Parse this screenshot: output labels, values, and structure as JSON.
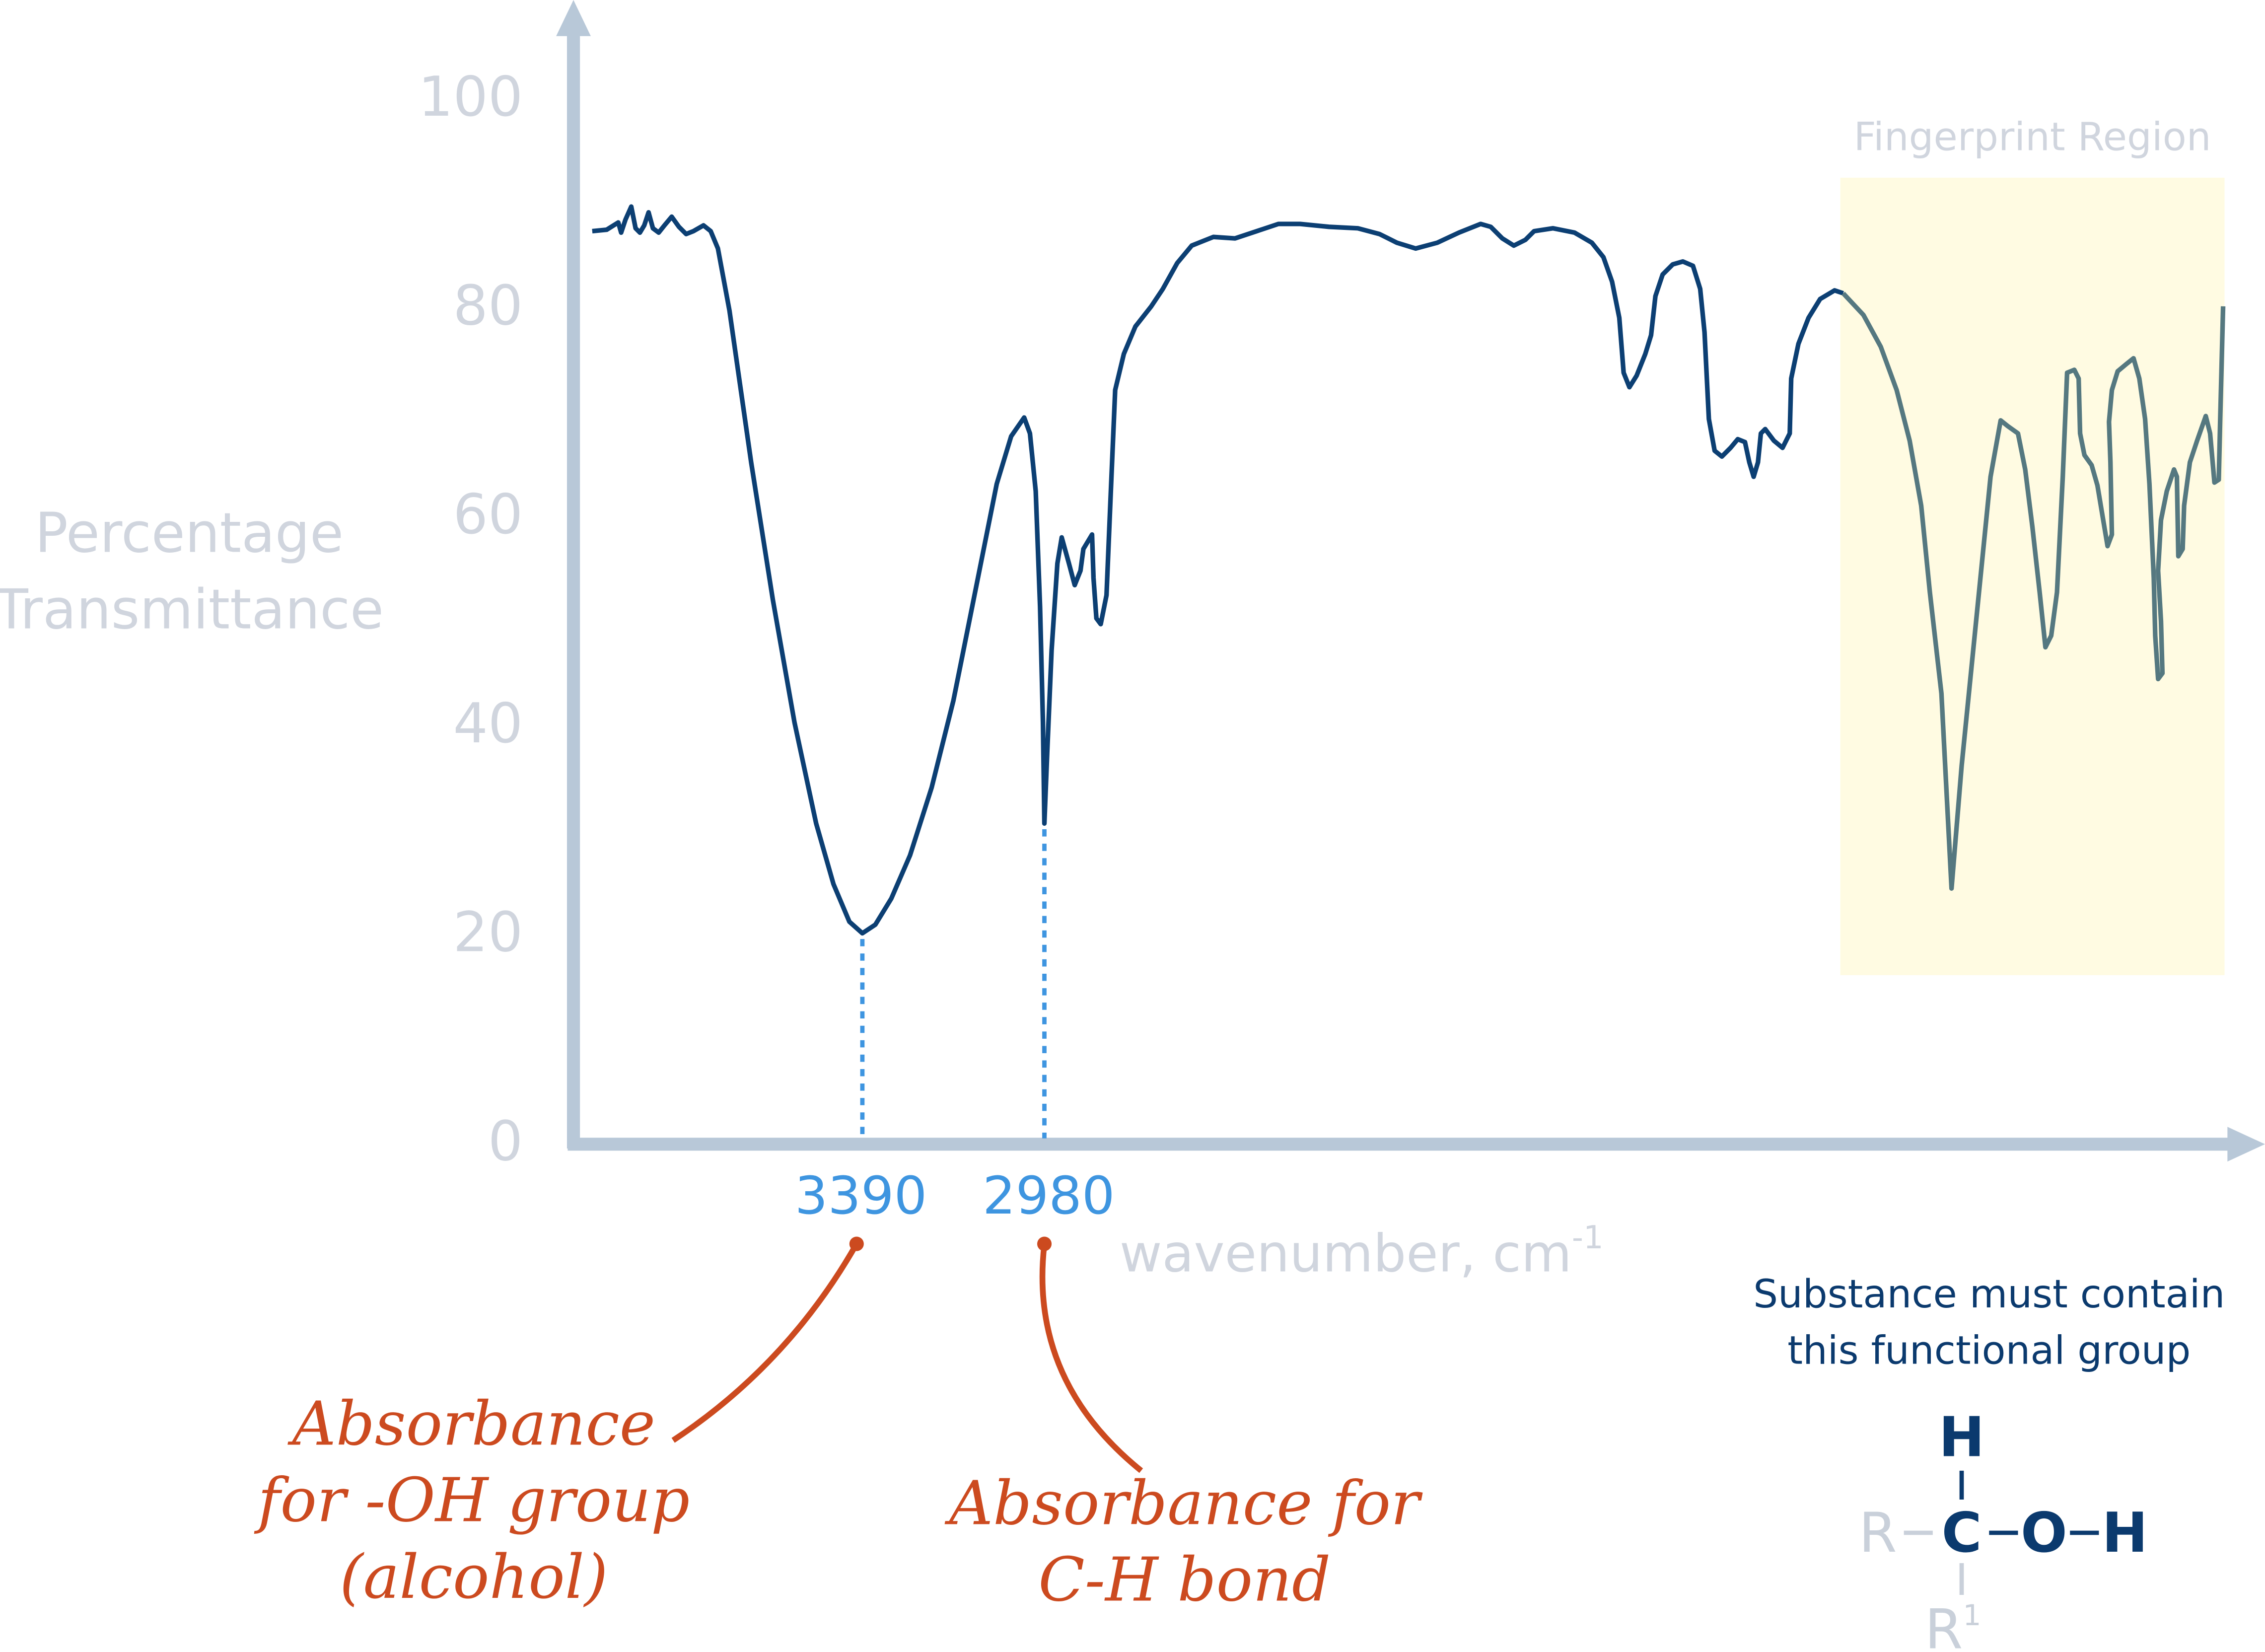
{
  "chart_data": {
    "type": "line",
    "ylabel_lines": [
      "Percentage",
      "Transmittance"
    ],
    "xlabel": "wavenumber, cm",
    "xlabel_sup": "-1",
    "ylim": [
      0,
      100
    ],
    "yticks": [
      "0",
      "20",
      "40",
      "60",
      "80",
      "100"
    ],
    "x_direction": "decreasing wavenumber left to right",
    "marked_peaks": [
      {
        "wavenumber": "3390",
        "transmittance": 20
      },
      {
        "wavenumber": "2980",
        "transmittance": 31
      }
    ],
    "region": {
      "label": "Fingerprint Region",
      "color": "#fffbe2"
    },
    "colors": {
      "curve": "#0c3f73",
      "curve_fingerprint": "#557880",
      "axis": "#b8c8d8",
      "peak_marker": "#3e95e0",
      "annotation": "#cc4a1f"
    },
    "grid": false
  },
  "annotations": {
    "oh": [
      "Absorbance",
      "for -OH group",
      "(alcohol)"
    ],
    "ch": [
      "Absorbance for",
      "C-H bond"
    ]
  },
  "note": {
    "lines": [
      "Substance must contain",
      "this functional group"
    ],
    "structure": {
      "top": "H",
      "center": "C",
      "o": "O",
      "right": "H",
      "left": "R",
      "bottom": "R",
      "bottom_sup": "1"
    }
  }
}
